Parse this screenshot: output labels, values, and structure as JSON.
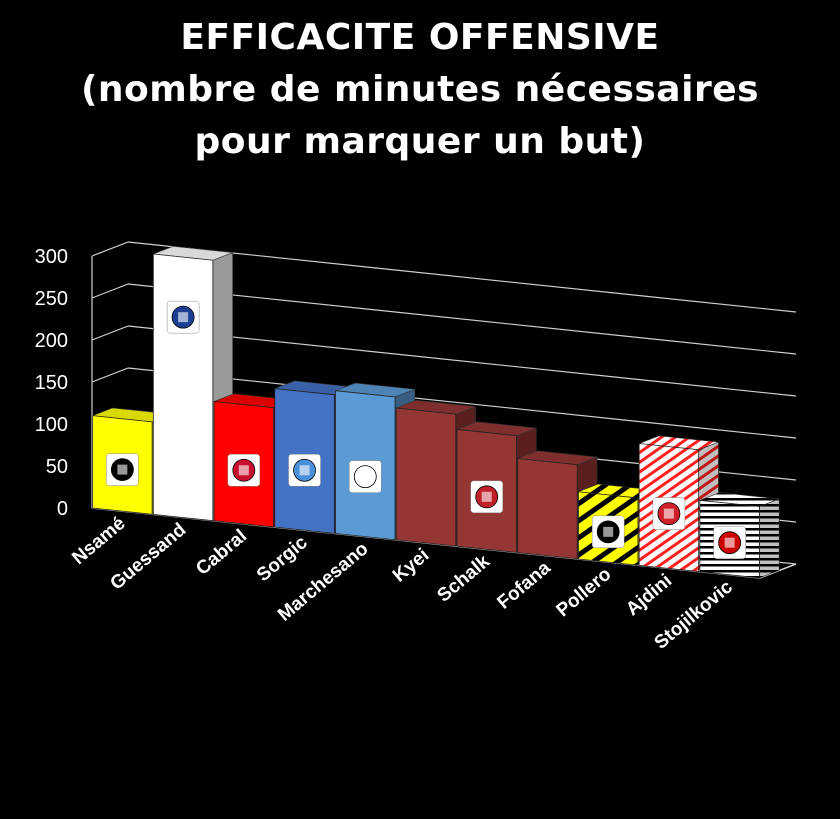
{
  "chart_data": {
    "type": "bar",
    "title_lines": [
      "EFFICACITE OFFENSIVE",
      "(nombre de minutes nécessaires",
      "pour marquer un but)"
    ],
    "categories": [
      "Nsamé",
      "Guessand",
      "Cabral",
      "Sorgic",
      "Marchesano",
      "Kyei",
      "Schalk",
      "Fofana",
      "Pollero",
      "Ajdini",
      "Stojilkovic"
    ],
    "values": [
      110,
      310,
      142,
      165,
      170,
      157,
      139,
      112,
      80,
      145,
      85
    ],
    "ylim": [
      0,
      300
    ],
    "yticks": [
      0,
      50,
      100,
      150,
      200,
      250,
      300
    ],
    "grid": true,
    "style": "3d-column",
    "bars": [
      {
        "fill": "#ffff00",
        "pattern": "solid",
        "accent": "#000000",
        "logo": "yb-logo-icon"
      },
      {
        "fill": "#ffffff",
        "pattern": "solid",
        "accent": "#1c3f94",
        "logo": "lausanne-logo-icon"
      },
      {
        "fill": "#ff0000",
        "pattern": "solid",
        "accent": "#c8102e",
        "logo": "basel-logo-icon"
      },
      {
        "fill": "#4472c4",
        "pattern": "solid",
        "accent": "#4a90d9",
        "logo": "luzern-logo-icon"
      },
      {
        "fill": "#5b9bd5",
        "pattern": "solid",
        "accent": "#ffffff",
        "logo": "zurich-logo-icon"
      },
      {
        "fill": "#943634",
        "pattern": "solid",
        "accent": "#943634",
        "logo": ""
      },
      {
        "fill": "#943634",
        "pattern": "solid",
        "accent": "#c0202a",
        "logo": "servette-logo-icon"
      },
      {
        "fill": "#943634",
        "pattern": "solid",
        "accent": "#943634",
        "logo": ""
      },
      {
        "fill": "#ffff00",
        "pattern": "stripes",
        "accent": "#000000",
        "logo": "fcsg-logo-icon"
      },
      {
        "fill": "#ff2020",
        "pattern": "stripes",
        "accent": "#d0202a",
        "logo": "sion-logo-icon"
      },
      {
        "fill": "#ffffff",
        "pattern": "stripes",
        "accent": "#cc0000",
        "logo": "gc-logo-icon"
      }
    ]
  }
}
